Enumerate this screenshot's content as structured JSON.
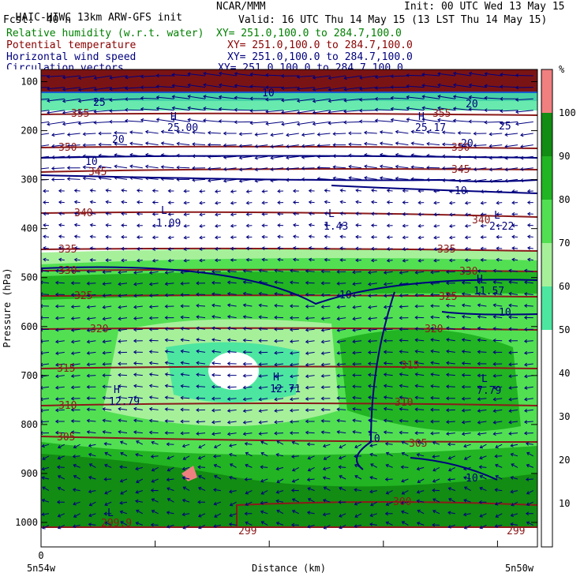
{
  "header": {
    "title": "HAIC-HIWC 13km ARW-GFS init",
    "org": "NCAR/MMM",
    "init": "Init: 00 UTC Wed 13 May 15",
    "fcst": "Fcst:  40 h",
    "valid": "Valid: 16 UTC Thu 14 May 15 (13 LST Thu 14 May 15)",
    "fields": [
      {
        "name": "Relative humidity (w.r.t. water)",
        "xy": "XY= 251.0,100.0 to 284.7,100.0",
        "color": "#008000"
      },
      {
        "name": "Potential temperature",
        "xy": "XY= 251.0,100.0 to 284.7,100.0",
        "color": "#8b0000"
      },
      {
        "name": "Horizontal wind speed",
        "xy": "XY= 251.0,100.0 to 284.7,100.0",
        "color": "#00007f"
      },
      {
        "name": "Circulation vectors",
        "xy": "XY= 251.0,100.0 to 284.7,100.0",
        "color": "#00007f"
      }
    ]
  },
  "chart_data": {
    "type": "heatmap",
    "xlabel": "Distance (km)",
    "ylabel": "Pressure (hPa)",
    "x_tick_labels": [
      "0"
    ],
    "x_start_label": "5n54w",
    "x_end_label": "5n50w",
    "y_ticks": [
      100,
      200,
      300,
      400,
      500,
      600,
      700,
      800,
      900,
      1000
    ],
    "ylim": [
      1050,
      75
    ],
    "colorbar": {
      "unit": "%",
      "levels": [
        10,
        20,
        30,
        40,
        50,
        60,
        70,
        80,
        90,
        100
      ],
      "colors": [
        "#ffffff",
        "#ffffff",
        "#ffffff",
        "#ffffff",
        "#ffffff",
        "#4de6a0",
        "#a6f09a",
        "#52e052",
        "#22b422",
        "#128c12",
        "#f08080"
      ]
    },
    "theta_contours": [
      {
        "value": 355,
        "labels": [
          "355",
          "355"
        ]
      },
      {
        "value": 350,
        "labels": [
          "350",
          "350"
        ]
      },
      {
        "value": 345,
        "labels": [
          "345",
          "345"
        ]
      },
      {
        "value": 340,
        "labels": [
          "340",
          "340"
        ]
      },
      {
        "value": 335,
        "labels": [
          "335",
          "335"
        ]
      },
      {
        "value": 330,
        "labels": [
          "330",
          "330"
        ]
      },
      {
        "value": 325,
        "labels": [
          "325",
          "325"
        ]
      },
      {
        "value": 320,
        "labels": [
          "320",
          "320"
        ]
      },
      {
        "value": 315,
        "labels": [
          "315",
          "315"
        ]
      },
      {
        "value": 310,
        "labels": [
          "310",
          "310"
        ]
      },
      {
        "value": 305,
        "labels": [
          "305",
          "305"
        ]
      },
      {
        "value": 300,
        "labels": [
          "300"
        ]
      },
      {
        "value": 299,
        "labels": [
          "299",
          "299"
        ]
      }
    ],
    "wind_contour_labels": [
      "10",
      "10",
      "10",
      "10",
      "10",
      "10",
      "10",
      "20",
      "20",
      "20",
      "25",
      "25"
    ],
    "highs_lows": [
      {
        "type": "H",
        "value": "25.00"
      },
      {
        "type": "H",
        "value": "25.17"
      },
      {
        "type": "L",
        "value": "1.09"
      },
      {
        "type": "L",
        "value": "1.43"
      },
      {
        "type": "L",
        "value": "2.22"
      },
      {
        "type": "H",
        "value": "11.57"
      },
      {
        "type": "H",
        "value": "12.71"
      },
      {
        "type": "H",
        "value": "12.79"
      },
      {
        "type": "L",
        "value": "7.79"
      },
      {
        "type": "L",
        "value": "299.9"
      }
    ]
  }
}
